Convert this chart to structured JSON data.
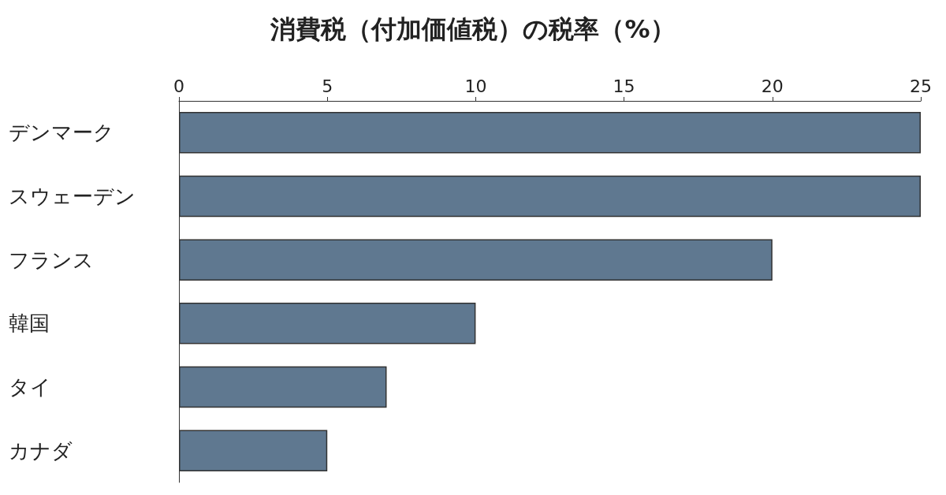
{
  "chart_data": {
    "type": "bar",
    "orientation": "horizontal",
    "title": "消費税（付加価値税）の税率（%）",
    "categories": [
      "デンマーク",
      "スウェーデン",
      "フランス",
      "韓国",
      "タイ",
      "カナダ"
    ],
    "values": [
      25,
      25,
      20,
      10,
      7,
      5
    ],
    "color": "#5f7890",
    "xlim": [
      0,
      25
    ],
    "xticks": [
      0,
      5,
      10,
      15,
      20,
      25
    ],
    "grid": false
  }
}
